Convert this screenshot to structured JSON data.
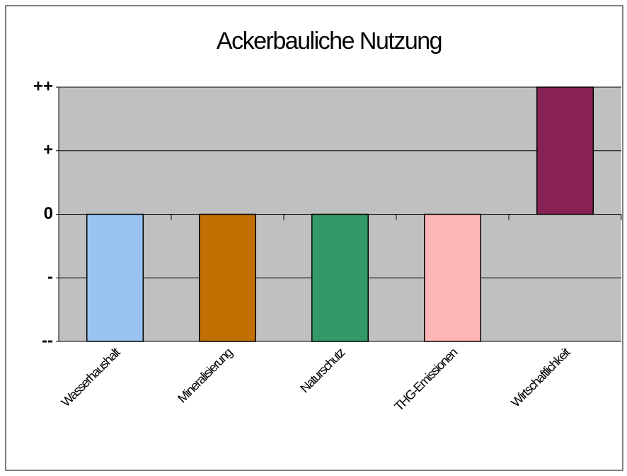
{
  "chart_data": {
    "type": "bar",
    "title": "Ackerbauliche Nutzung",
    "categories": [
      "Wasserhaushalt",
      "Mineralisierung",
      "Naturschutz",
      "THG-Emissionen",
      "Wirtschaftlichkeit"
    ],
    "values": [
      -2,
      -2,
      -2,
      -2,
      2
    ],
    "colors": [
      "#99c4f2",
      "#c07000",
      "#339966",
      "#ffb6b6",
      "#882255"
    ],
    "ylim": [
      -2,
      2
    ],
    "yticks": [
      {
        "value": -2,
        "label": "--"
      },
      {
        "value": -1,
        "label": "-"
      },
      {
        "value": 0,
        "label": "0"
      },
      {
        "value": 1,
        "label": "+"
      },
      {
        "value": 2,
        "label": "++"
      }
    ],
    "grid": true
  }
}
